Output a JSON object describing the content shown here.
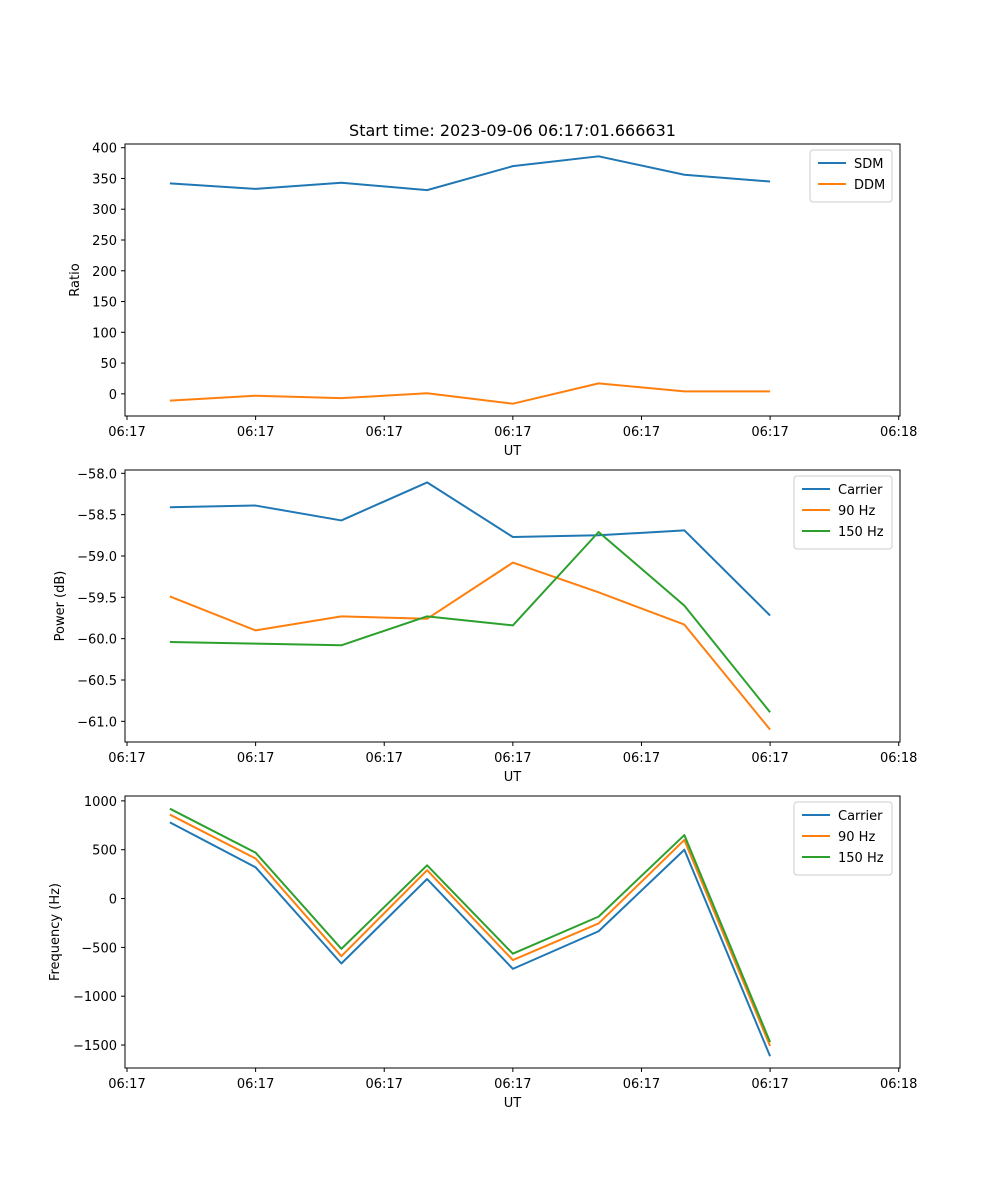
{
  "chart_data": [
    {
      "type": "line",
      "title": "Start time: 2023-09-06 06:17:01.666631",
      "xlabel": "UT",
      "ylabel": "Ratio",
      "x": [
        0.5,
        1.5,
        2.5,
        3.5,
        4.5,
        5.5,
        6.5,
        7.5
      ],
      "xlim": [
        -0.0232,
        9.015
      ],
      "ylim": [
        -36,
        406
      ],
      "xticks": [
        0.0,
        1.5,
        3.0,
        4.5,
        6.0,
        7.5,
        9.0
      ],
      "xtick_labels": [
        "06:17",
        "06:17",
        "06:17",
        "06:17",
        "06:17",
        "06:17",
        "06:18"
      ],
      "yticks": [
        0,
        50,
        100,
        150,
        200,
        250,
        300,
        350,
        400
      ],
      "ytick_labels": [
        "0",
        "50",
        "100",
        "150",
        "200",
        "250",
        "300",
        "350",
        "400"
      ],
      "legend_loc": "top-right",
      "series": [
        {
          "name": "SDM",
          "color": "#1f77b4",
          "values": [
            342,
            333,
            343,
            331,
            370,
            386,
            356,
            345
          ]
        },
        {
          "name": "DDM",
          "color": "#ff7f0e",
          "values": [
            -11,
            -3,
            -7,
            1,
            -16,
            17,
            4,
            4
          ]
        }
      ]
    },
    {
      "type": "line",
      "title": "",
      "xlabel": "UT",
      "ylabel": "Power (dB)",
      "x": [
        0.5,
        1.5,
        2.5,
        3.5,
        4.5,
        5.5,
        6.5,
        7.5
      ],
      "xlim": [
        -0.0232,
        9.015
      ],
      "ylim": [
        -61.25,
        -57.96
      ],
      "xticks": [
        0.0,
        1.5,
        3.0,
        4.5,
        6.0,
        7.5,
        9.0
      ],
      "xtick_labels": [
        "06:17",
        "06:17",
        "06:17",
        "06:17",
        "06:17",
        "06:17",
        "06:18"
      ],
      "yticks": [
        -58.0,
        -58.5,
        -59.0,
        -59.5,
        -60.0,
        -60.5,
        -61.0
      ],
      "ytick_labels": [
        "−58.0",
        "−58.5",
        "−59.0",
        "−59.5",
        "−60.0",
        "−60.5",
        "−61.0"
      ],
      "legend_loc": "top-right",
      "series": [
        {
          "name": "Carrier",
          "color": "#1f77b4",
          "values": [
            -58.41,
            -58.39,
            -58.57,
            -58.11,
            -58.77,
            -58.75,
            -58.69,
            -59.72
          ]
        },
        {
          "name": "90 Hz",
          "color": "#ff7f0e",
          "values": [
            -59.49,
            -59.9,
            -59.73,
            -59.76,
            -59.08,
            -59.44,
            -59.83,
            -61.1
          ]
        },
        {
          "name": "150 Hz",
          "color": "#2ca02c",
          "values": [
            -60.04,
            -60.06,
            -60.08,
            -59.73,
            -59.84,
            -58.71,
            -59.6,
            -60.89
          ]
        }
      ]
    },
    {
      "type": "line",
      "title": "",
      "xlabel": "UT",
      "ylabel": "Frequency (Hz)",
      "x": [
        0.5,
        1.5,
        2.5,
        3.5,
        4.5,
        5.5,
        6.5,
        7.5
      ],
      "xlim": [
        -0.0232,
        9.015
      ],
      "ylim": [
        -1735,
        1050
      ],
      "xticks": [
        0.0,
        1.5,
        3.0,
        4.5,
        6.0,
        7.5,
        9.0
      ],
      "xtick_labels": [
        "06:17",
        "06:17",
        "06:17",
        "06:17",
        "06:17",
        "06:17",
        "06:18"
      ],
      "yticks": [
        1000,
        500,
        0,
        -500,
        -1000,
        -1500
      ],
      "ytick_labels": [
        "1000",
        "500",
        "0",
        "−500",
        "−1000",
        "−1500"
      ],
      "legend_loc": "top-right",
      "series": [
        {
          "name": "Carrier",
          "color": "#1f77b4",
          "values": [
            780,
            320,
            -665,
            200,
            -720,
            -335,
            500,
            -1615
          ]
        },
        {
          "name": "90 Hz",
          "color": "#ff7f0e",
          "values": [
            860,
            410,
            -590,
            290,
            -630,
            -255,
            600,
            -1510
          ]
        },
        {
          "name": "150 Hz",
          "color": "#2ca02c",
          "values": [
            920,
            470,
            -515,
            340,
            -565,
            -185,
            650,
            -1470
          ]
        }
      ]
    }
  ]
}
